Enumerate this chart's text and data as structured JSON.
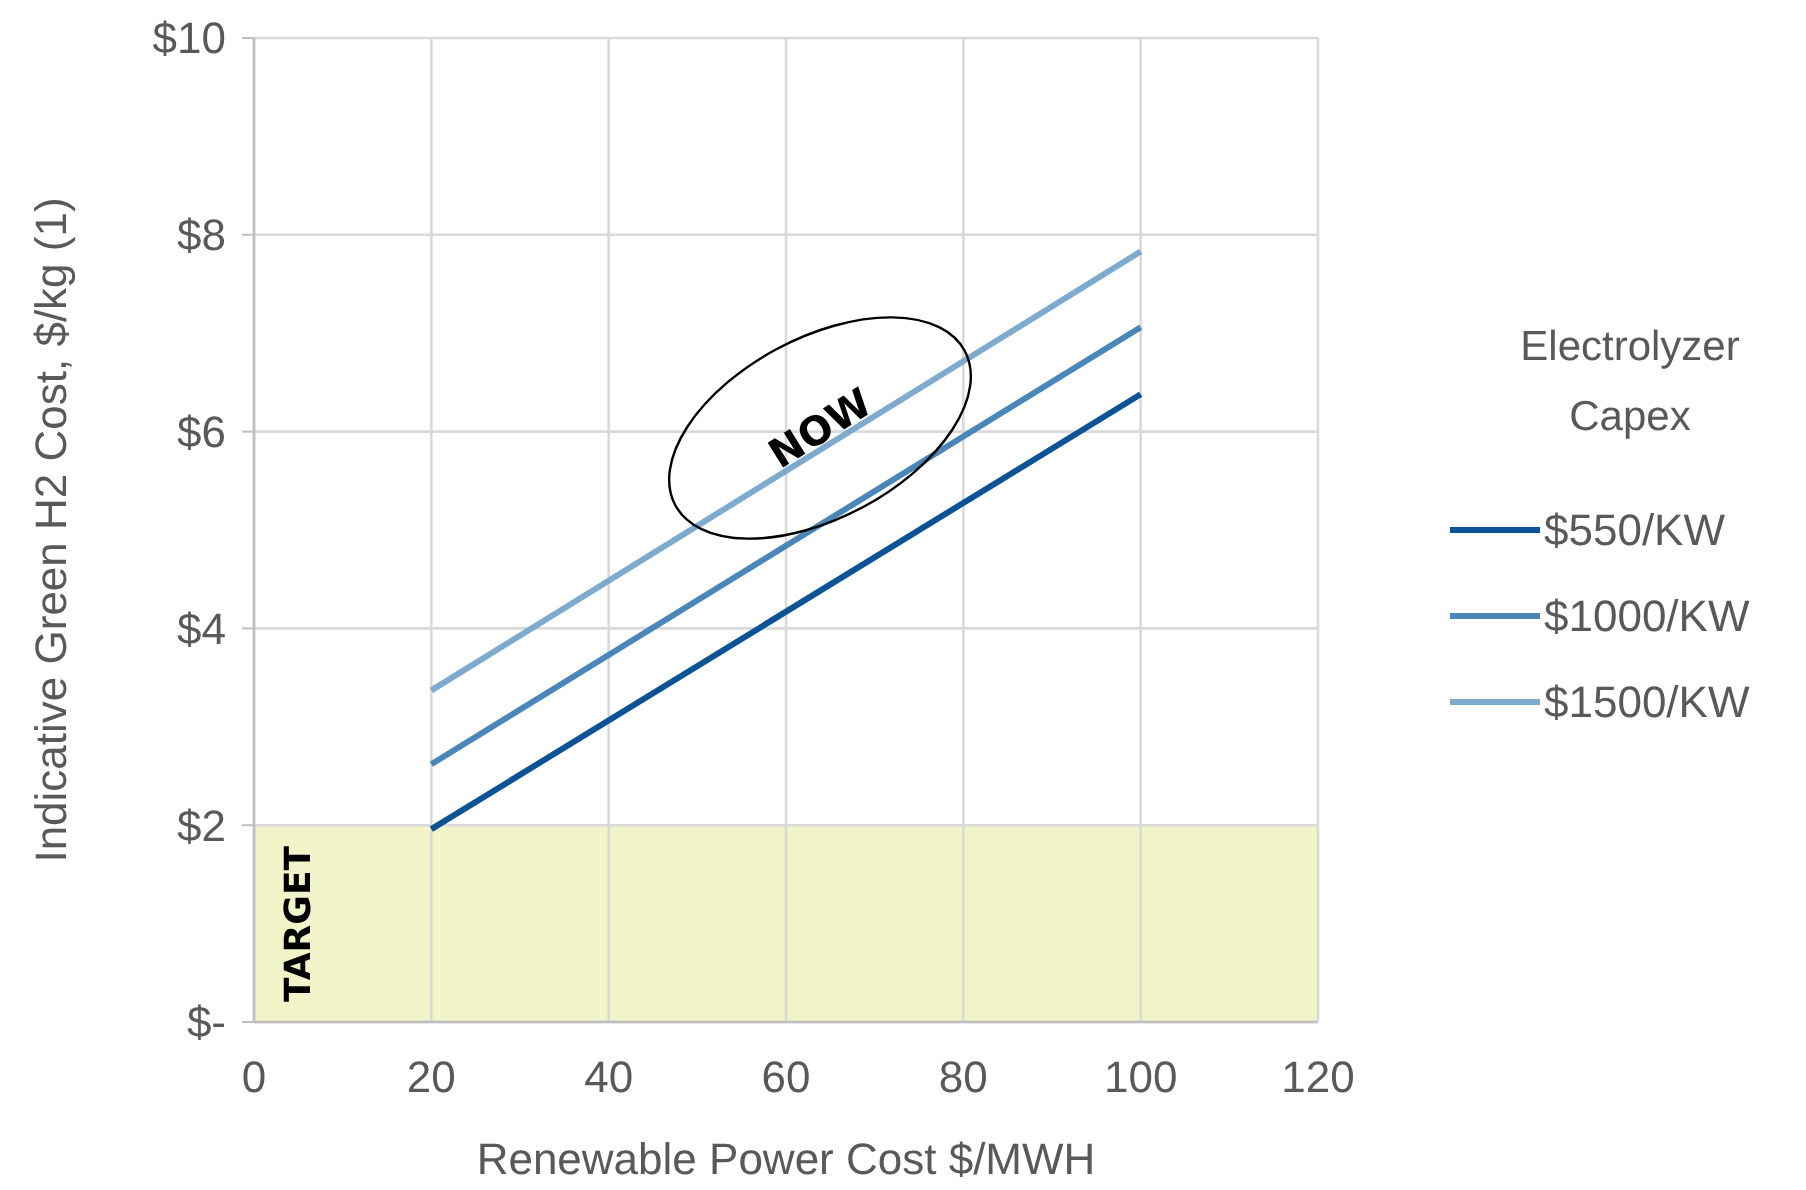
{
  "chart_data": {
    "type": "line",
    "xlabel": "Renewable Power Cost $/MWH",
    "ylabel": "Indicative Green H2 Cost, $/kg (1)",
    "legend_title": "Electrolyzer Capex",
    "legend": "right",
    "grid": true,
    "marker": "none",
    "line_style": "solid",
    "x": [
      20,
      100
    ],
    "series": [
      {
        "name": "$550/KW",
        "color": "#0b5394",
        "values": [
          1.96,
          6.38
        ]
      },
      {
        "name": "$1000/KW",
        "color": "#4a86b8",
        "values": [
          2.62,
          7.06
        ]
      },
      {
        "name": "$1500/KW",
        "color": "#7eaacd",
        "values": [
          3.37,
          7.83
        ]
      }
    ],
    "xlim": [
      0,
      120
    ],
    "xticks": [
      0,
      20,
      40,
      60,
      80,
      100,
      120
    ],
    "ylim": [
      0,
      10
    ],
    "yticks": [
      {
        "value": 0,
        "label": "$-"
      },
      {
        "value": 2,
        "label": "$2"
      },
      {
        "value": 4,
        "label": "$4"
      },
      {
        "value": 6,
        "label": "$6"
      },
      {
        "value": 8,
        "label": "$8"
      },
      {
        "value": 10,
        "label": "$10"
      }
    ],
    "bands": [
      {
        "axis": "y",
        "from": 0,
        "to": 2,
        "label": "TARGET",
        "color": "#f1f4c9"
      }
    ],
    "annotations": [
      "NOW"
    ]
  }
}
